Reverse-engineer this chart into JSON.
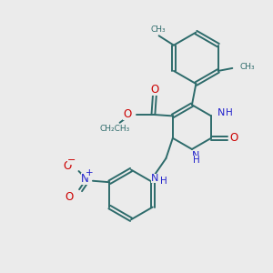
{
  "background_color": "#ebebeb",
  "bond_color": "#2d6b6b",
  "nitrogen_color": "#2222cc",
  "oxygen_color": "#cc0000",
  "figsize": [
    3.0,
    3.0
  ],
  "dpi": 100,
  "xlim": [
    0,
    10
  ],
  "ylim": [
    0,
    10
  ]
}
